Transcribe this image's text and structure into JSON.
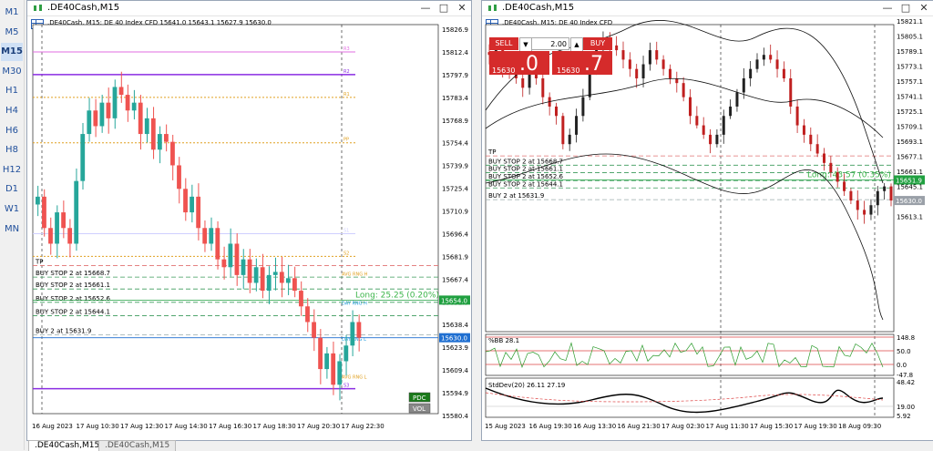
{
  "timeframes": [
    "M1",
    "M5",
    "M15",
    "M30",
    "H1",
    "H4",
    "H6",
    "H8",
    "H12",
    "D1",
    "W1",
    "MN"
  ],
  "active_timeframe": "M15",
  "left": {
    "title": ".DE40Cash,M15",
    "header": ".DE40Cash, M15:  DE 40 Index CFD  15641.0 15643.1 15627.9 15630.0",
    "prices": [
      "15826.9",
      "15812.4",
      "15797.9",
      "15783.4",
      "15768.9",
      "15754.4",
      "15739.9",
      "15725.4",
      "15710.9",
      "15696.4",
      "15681.9",
      "15667.4",
      "15652.9",
      "15638.4",
      "15623.9",
      "15609.4",
      "15594.9",
      "15580.4"
    ],
    "times": [
      "16 Aug 2023",
      "17 Aug 10:30",
      "17 Aug 12:30",
      "17 Aug 14:30",
      "17 Aug 16:30",
      "17 Aug 18:30",
      "17 Aug 20:30",
      "17 Aug 22:30"
    ],
    "price_tags": [
      {
        "text": "15654.0",
        "color": "#20a040"
      },
      {
        "text": "15630.0",
        "color": "#1f6fd1"
      }
    ],
    "orders": [
      "TP",
      "BUY STOP 2 at 15668.7",
      "BUY STOP 2 at 15661.1",
      "BUY STOP 2 at 15652.6",
      "BUY STOP 2 at 15644.1",
      "BUY 2 at 15631.9"
    ],
    "long_label": "Long: 25.25  (0.20%)",
    "pdc_label": "PDC",
    "vol_label": "VOL",
    "level_labels": [
      "R3",
      "R2",
      "R1",
      "PP",
      "S1",
      "S2",
      "S3"
    ],
    "range_labels": [
      "AVG RNG H",
      "DAY RNG H",
      "DAY RNG L",
      "AVG RNG L"
    ]
  },
  "right": {
    "title": ".DE40Cash,M15",
    "header": ".DE40Cash, M15:  DE 40 Index CFD",
    "sell_label": "SELL",
    "buy_label": "BUY",
    "lot": "2.00",
    "bid_small": "15630",
    "bid_big": ".0",
    "ask_small": "15630",
    "ask_big": ".7",
    "prices": [
      "15821.1",
      "15805.1",
      "15789.1",
      "15773.1",
      "15757.1",
      "15741.1",
      "15725.1",
      "15709.1",
      "15693.1",
      "15677.1",
      "15661.1",
      "15645.1",
      "15629.1",
      "15613.1"
    ],
    "times": [
      "15 Aug 2023",
      "16 Aug 19:30",
      "16 Aug 13:30",
      "16 Aug 21:30",
      "17 Aug 02:30",
      "17 Aug 11:30",
      "17 Aug 15:30",
      "17 Aug 19:30",
      "18 Aug 09:30"
    ],
    "price_tags": [
      {
        "text": "15651.9",
        "color": "#20a040"
      },
      {
        "text": "15630.0",
        "color": "#9aa0a8"
      }
    ],
    "orders": [
      "TP",
      "BUY STOP 2 at 15668.7",
      "BUY STOP 2 at 15661.1",
      "BUY STOP 2 at 15652.6",
      "BUY STOP 2 at 15644.1",
      "BUY 2 at 15631.9"
    ],
    "long_label": "Long: 43.57  (0.35%)",
    "ind1_label": "%BB 28.1",
    "ind1_scale": [
      "148.8",
      "50.0",
      "0.0",
      "-47.8"
    ],
    "ind2_label": "StdDev(20) 26.11 27.19",
    "ind2_scale": [
      "48.42",
      "19.00",
      "5.92"
    ]
  },
  "tabs": [
    ".DE40Cash,M15",
    ".DE40Cash,M15"
  ]
}
